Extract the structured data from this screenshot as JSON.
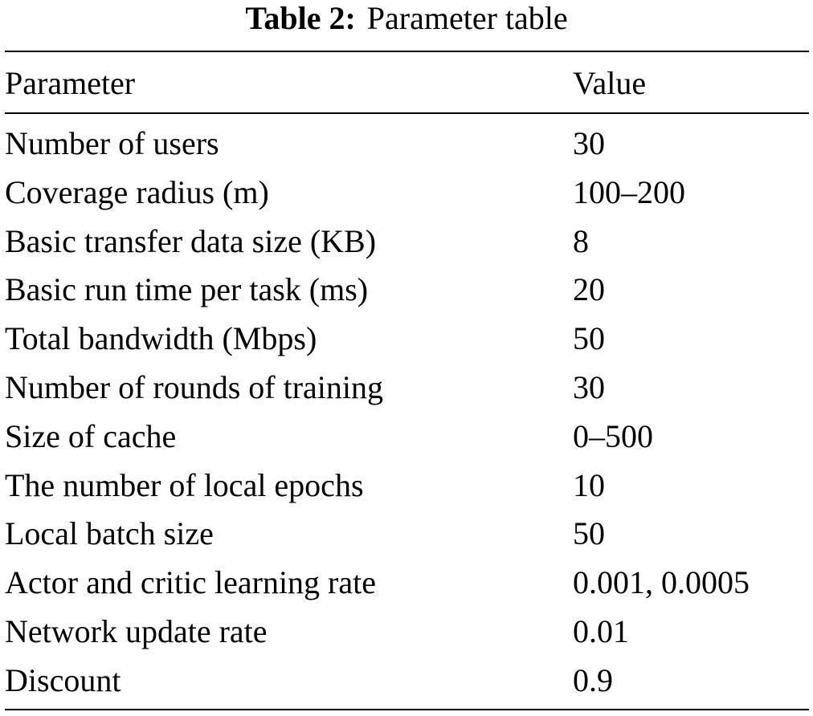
{
  "caption": {
    "label": "Table 2:",
    "title": "Parameter table"
  },
  "table": {
    "headers": [
      "Parameter",
      "Value"
    ],
    "rows": [
      [
        "Number of users",
        "30"
      ],
      [
        "Coverage radius (m)",
        "100–200"
      ],
      [
        "Basic transfer data size (KB)",
        "8"
      ],
      [
        "Basic run time per task (ms)",
        "20"
      ],
      [
        "Total bandwidth (Mbps)",
        "50"
      ],
      [
        "Number of rounds of training",
        "30"
      ],
      [
        "Size of cache",
        "0–500"
      ],
      [
        "The number of local epochs",
        "10"
      ],
      [
        "Local batch size",
        "50"
      ],
      [
        "Actor and critic learning rate",
        "0.001, 0.0005"
      ],
      [
        "Network update rate",
        "0.01"
      ],
      [
        "Discount",
        "0.9"
      ]
    ]
  }
}
